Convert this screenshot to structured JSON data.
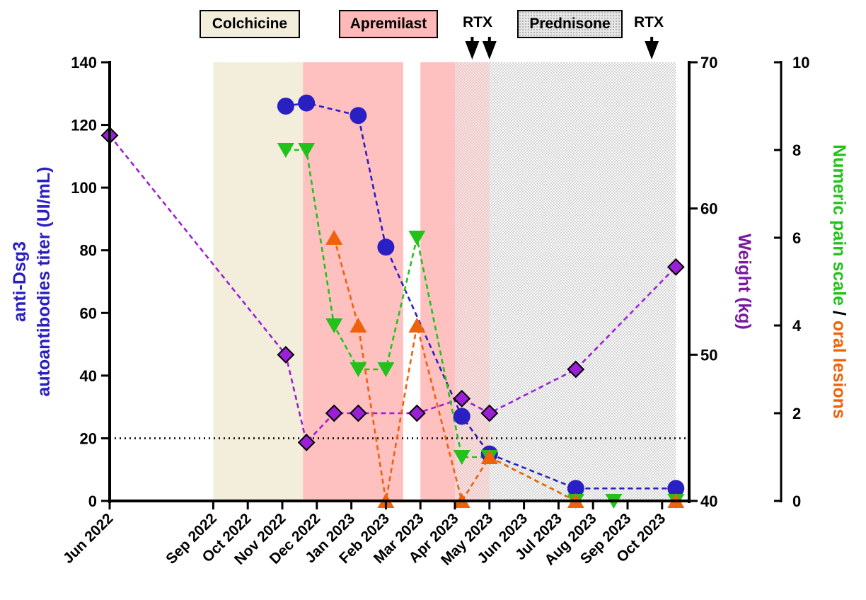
{
  "chart_data": {
    "type": "line",
    "x_tick_labels": [
      "Jun 2022",
      "Sep 2022",
      "Oct 2022",
      "Nov 2022",
      "Dec 2022",
      "Jan 2023",
      "Feb 2023",
      "Mar 2023",
      "Apr 2023",
      "May 2023",
      "Jun 2023",
      "Jul 2023",
      "Aug 2023",
      "Sep 2023",
      "Oct 2023"
    ],
    "left_axis": {
      "label_line1": "anti-Dsg3",
      "label_line2": "autoantibodies titer (UI/mL)",
      "range": [
        0,
        140
      ],
      "ticks": [
        "0",
        "20",
        "40",
        "60",
        "80",
        "100",
        "120",
        "140"
      ],
      "color": "#2a1fc2"
    },
    "weight_axis": {
      "label": "Weight (kg)",
      "range": [
        40,
        70
      ],
      "ticks": [
        "40",
        "50",
        "60",
        "70"
      ],
      "color": "#7a1aa0"
    },
    "score_axis": {
      "label_part1": "Numeric pain scale",
      "label_sep": " / ",
      "label_part2": "oral lesions",
      "range": [
        0,
        10
      ],
      "ticks": [
        "0",
        "2",
        "4",
        "6",
        "8",
        "10"
      ],
      "color_part1": "#22c21a",
      "color_part2": "#f0620a"
    },
    "reference_line": {
      "axis": "left",
      "value": 20,
      "style": "dotted"
    },
    "treatments": [
      {
        "name": "Colchicine",
        "from": 3.0,
        "to": 5.6,
        "style": "beige"
      },
      {
        "name": "Apremilast",
        "from": 5.6,
        "to": 8.5,
        "style": "pink"
      },
      {
        "name": "Apremilast",
        "from": 9.0,
        "to": 10.0,
        "style": "pink"
      },
      {
        "name": "Prednisone",
        "from": 10.0,
        "to": 16.4,
        "style": "dots"
      }
    ],
    "treatment_labels": [
      {
        "name": "Colchicine",
        "style": "beige"
      },
      {
        "name": "Apremilast",
        "style": "pink"
      },
      {
        "name": "Prednisone",
        "style": "dots"
      }
    ],
    "rtx_events": [
      {
        "label": "RTX",
        "arrows_at": [
          10.5,
          11.0
        ]
      },
      {
        "label": "RTX",
        "arrows_at": [
          15.7
        ]
      }
    ],
    "series": [
      {
        "name": "anti-Dsg3 titer",
        "axis": "left",
        "marker": "circle",
        "color": "#2a1fc2",
        "points": [
          [
            5.1,
            126
          ],
          [
            5.7,
            127
          ],
          [
            7.2,
            123
          ],
          [
            8.0,
            81
          ],
          [
            10.2,
            27
          ],
          [
            11.0,
            15
          ],
          [
            13.5,
            4
          ],
          [
            16.4,
            4
          ]
        ]
      },
      {
        "name": "Weight",
        "axis": "weight",
        "marker": "diamond",
        "color": "#9b1fd6",
        "points": [
          [
            0.0,
            65
          ],
          [
            5.1,
            50
          ],
          [
            5.7,
            44
          ],
          [
            6.5,
            46
          ],
          [
            7.2,
            46
          ],
          [
            8.9,
            46
          ],
          [
            10.2,
            47
          ],
          [
            11.0,
            46
          ],
          [
            13.5,
            49
          ],
          [
            16.4,
            56
          ]
        ]
      },
      {
        "name": "Numeric pain scale",
        "axis": "score",
        "marker": "triangle-down",
        "color": "#22c21a",
        "points": [
          [
            5.1,
            8
          ],
          [
            5.7,
            8
          ],
          [
            6.5,
            4
          ],
          [
            7.2,
            3
          ],
          [
            8.0,
            3
          ],
          [
            8.9,
            6
          ],
          [
            10.2,
            1
          ],
          [
            11.0,
            1
          ],
          [
            13.5,
            0
          ],
          [
            14.6,
            0
          ],
          [
            16.4,
            0
          ]
        ]
      },
      {
        "name": "Oral lesions",
        "axis": "score",
        "marker": "triangle-up",
        "color": "#f0620a",
        "points": [
          [
            6.5,
            6
          ],
          [
            7.2,
            4
          ],
          [
            8.0,
            0
          ],
          [
            8.9,
            4
          ],
          [
            10.2,
            0
          ],
          [
            11.0,
            1
          ],
          [
            13.5,
            0
          ],
          [
            16.4,
            0
          ]
        ]
      }
    ]
  }
}
